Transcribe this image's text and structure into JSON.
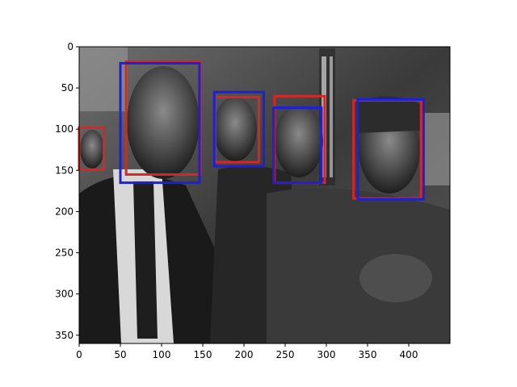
{
  "chart_data": {
    "type": "image-with-boxes",
    "image_extent": {
      "width": 450,
      "height": 360
    },
    "xlim": [
      0,
      450
    ],
    "ylim": [
      360,
      0
    ],
    "xticks": [
      0,
      50,
      100,
      150,
      200,
      250,
      300,
      350,
      400
    ],
    "yticks": [
      0,
      50,
      100,
      150,
      200,
      250,
      300,
      350
    ],
    "series": [
      {
        "color": "#d62728",
        "boxes": [
          {
            "x0": 0,
            "y0": 98,
            "x1": 30,
            "y1": 149
          },
          {
            "x0": 57,
            "y0": 18,
            "x1": 147,
            "y1": 155
          },
          {
            "x0": 165,
            "y0": 61,
            "x1": 218,
            "y1": 140
          },
          {
            "x0": 237,
            "y0": 60,
            "x1": 298,
            "y1": 165
          },
          {
            "x0": 333,
            "y0": 65,
            "x1": 415,
            "y1": 184
          }
        ]
      },
      {
        "color": "#1f1fd6",
        "boxes": [
          {
            "x0": 50,
            "y0": 20,
            "x1": 146,
            "y1": 165
          },
          {
            "x0": 164,
            "y0": 55,
            "x1": 224,
            "y1": 145
          },
          {
            "x0": 236,
            "y0": 74,
            "x1": 294,
            "y1": 165
          },
          {
            "x0": 338,
            "y0": 64,
            "x1": 418,
            "y1": 185
          }
        ]
      }
    ]
  }
}
